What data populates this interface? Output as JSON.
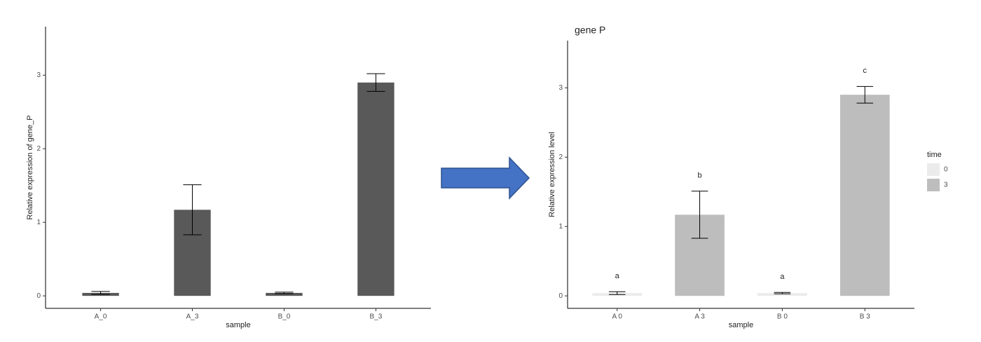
{
  "chart_data": [
    {
      "type": "bar",
      "categories": [
        "A_0",
        "A_3",
        "B_0",
        "B_3"
      ],
      "series": [
        {
          "name": null,
          "color": "#595959",
          "values": [
            0.04,
            1.17,
            0.04,
            2.9
          ],
          "errors": [
            0.02,
            0.34,
            0.01,
            0.12
          ]
        }
      ],
      "x_label": "sample",
      "y_label": "Relative expression of gene_P",
      "ylim": [
        -0.17,
        3.66
      ],
      "yticks": [
        0,
        1,
        2,
        3
      ],
      "legend": false
    },
    {
      "type": "bar",
      "title": "gene P",
      "categories": [
        "A 0",
        "A 3",
        "B 0",
        "B 3"
      ],
      "series": [
        {
          "name": "0",
          "color": "#ebebeb",
          "values": [
            0.04,
            null,
            0.04,
            null
          ],
          "errors": [
            0.02,
            null,
            0.01,
            null
          ]
        },
        {
          "name": "3",
          "color": "#bdbdbd",
          "values": [
            null,
            1.17,
            null,
            2.9
          ],
          "errors": [
            null,
            0.34,
            null,
            0.12
          ]
        }
      ],
      "letters": [
        "a",
        "b",
        "a",
        "c"
      ],
      "x_label": "sample",
      "y_label": "Relative expression level",
      "legend_title": "time",
      "ylim": [
        -0.18,
        3.68
      ],
      "yticks": [
        0,
        1,
        2,
        3
      ],
      "legend": "right"
    }
  ]
}
